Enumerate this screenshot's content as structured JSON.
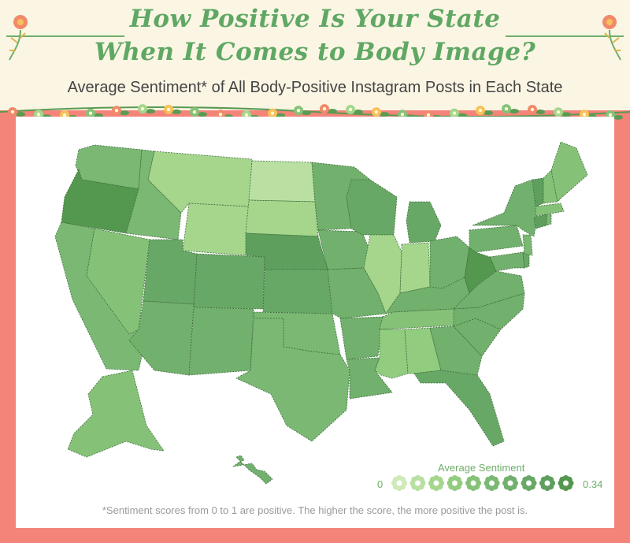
{
  "header": {
    "title_line1": "How Positive Is Your State",
    "title_line2": "When It Comes to Body Image?",
    "subtitle": "Average Sentiment* of All Body-Positive Instagram Posts in Each State"
  },
  "legend": {
    "title": "Average Sentiment",
    "min_label": "0",
    "max_label": "0.34",
    "swatch_colors": [
      "#cfe9b8",
      "#b9e0a2",
      "#a5d68c",
      "#92cc7f",
      "#86c178",
      "#7ab873",
      "#72b06d",
      "#68a866",
      "#5e9f5d",
      "#54974f"
    ]
  },
  "footnote": "*Sentiment scores from 0 to 1 are positive. The higher the score, the more positive the post is.",
  "colors": {
    "border": "#f4837a",
    "header_bg": "#fbf5e4",
    "accent_green": "#5fa864"
  }
}
